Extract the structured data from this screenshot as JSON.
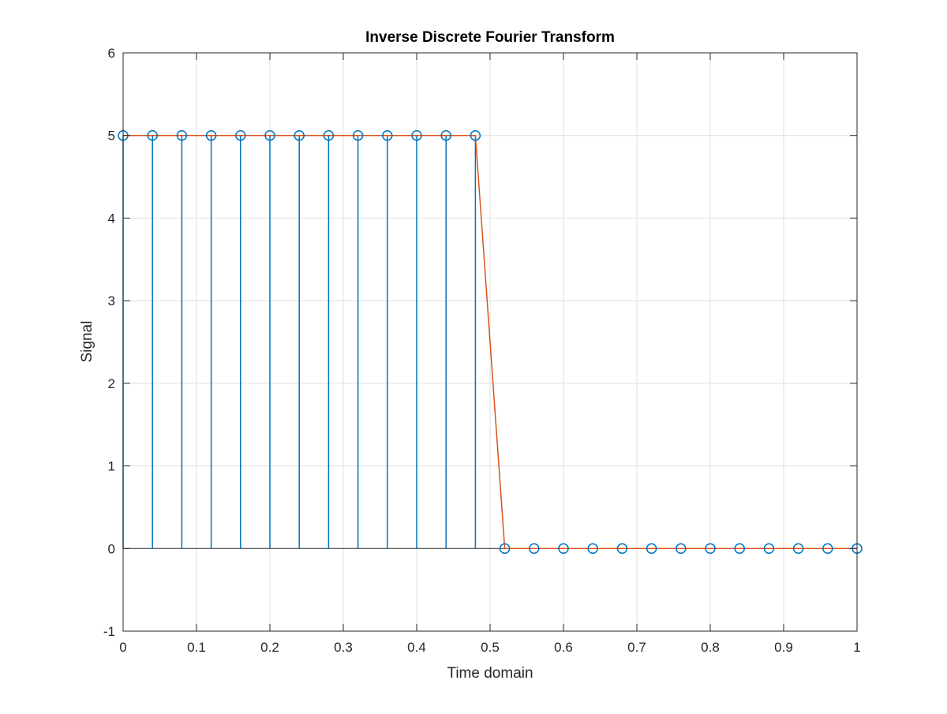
{
  "chart_data": {
    "type": "line",
    "title": "Inverse Discrete Fourier Transform",
    "xlabel": "Time domain",
    "ylabel": "Signal",
    "xlim": [
      0,
      1
    ],
    "ylim": [
      -1,
      6
    ],
    "grid": true,
    "legend": "none",
    "x_ticks": [
      "0",
      "0.1",
      "0.2",
      "0.3",
      "0.4",
      "0.5",
      "0.6",
      "0.7",
      "0.8",
      "0.9",
      "1"
    ],
    "y_ticks": [
      "-1",
      "0",
      "1",
      "2",
      "3",
      "4",
      "5",
      "6"
    ],
    "x": [
      0,
      0.04,
      0.08,
      0.12,
      0.16,
      0.2,
      0.24,
      0.28,
      0.32,
      0.36,
      0.4,
      0.44,
      0.48,
      0.52,
      0.56,
      0.6,
      0.64,
      0.68,
      0.72,
      0.76,
      0.8,
      0.84,
      0.88,
      0.92,
      0.96,
      1
    ],
    "series": [
      {
        "style": "stem",
        "color": "#0072BD",
        "values": [
          5,
          5,
          5,
          5,
          5,
          5,
          5,
          5,
          5,
          5,
          5,
          5,
          5,
          0,
          0,
          0,
          0,
          0,
          0,
          0,
          0,
          0,
          0,
          0,
          0,
          0
        ]
      },
      {
        "style": "line",
        "color": "#D95319",
        "values": [
          5,
          5,
          5,
          5,
          5,
          5,
          5,
          5,
          5,
          5,
          5,
          5,
          5,
          0,
          0,
          0,
          0,
          0,
          0,
          0,
          0,
          0,
          0,
          0,
          0,
          0
        ]
      }
    ]
  }
}
